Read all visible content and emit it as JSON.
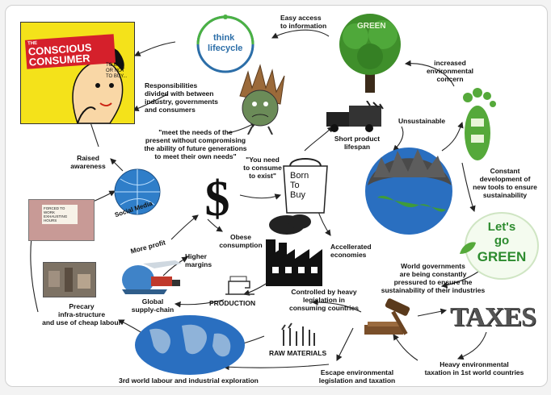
{
  "colors": {
    "arrow": "#222222",
    "consumer_yellow": "#f4e21a",
    "consumer_red": "#d5202b",
    "tree_green": "#3f8f2b",
    "earth_blue": "#2a6fc0",
    "go_green": "#2d8b2f",
    "footprint_green": "#55a93a"
  },
  "images": {
    "consumer_banner_line1": "THE",
    "consumer_banner_line2": "CONSCIOUS",
    "consumer_banner_line3": "CONSUMER",
    "consumer_small_text": "TO BUY\nOR NOT\nTO BUY...",
    "lifecycle_line1": "think",
    "lifecycle_line2": "lifecycle",
    "tree_word": "GREEN",
    "bag_text": "Born\nTo\nBuy",
    "social_media": "Social Media",
    "sign_text": "FORCED TO\nWORK\nEXHAUSTING\nHOURS",
    "lets_go_line1": "Let's",
    "lets_go_line2": "go",
    "lets_go_line3": "GREEN",
    "taxes": "TAXES",
    "dollar": "$"
  },
  "labels": {
    "easy_access": "Easy access\nto information",
    "increased_concern": "increased\nenvironmental\nconcern",
    "responsibilities": "Responsibilities\ndivided with between\nindustry, governments\nand consumers",
    "meet_needs": "\"meet the needs of the\npresent without compromising\nthe ability of future generations\nto meet their own needs\"",
    "unsustainable": "Unsustainable",
    "short_product": "Short product\nlifespan",
    "you_need": "\"You need\nto consume\nto exist\"",
    "raised_awareness": "Raised\nawareness",
    "constant_dev": "Constant\ndevelopment of\nnew tools to ensure\nsustainability",
    "more_profit": "More profit",
    "obese": "Obese\nconsumption",
    "accelerated": "Accellerated\neconomies",
    "higher_margins": "Higher\nmargins",
    "world_gov": "World governments\nare being constantly\npressured to ensure the\nsustainability of their industries",
    "controlled": "Controlled by heavy\nlegislation in\nconsuming countries",
    "production": "PRODUCTION",
    "global_supply": "Global\nsupply-chain",
    "precary": "Precary\ninfra-structure\nand use of cheap labour",
    "raw_materials": "RAW MATERIALS",
    "third_world": "3rd world labour and industrial exploration",
    "escape": "Escape environmental\nlegislation and taxation",
    "heavy_tax": "Heavy environmental\ntaxation in 1st world countries"
  }
}
